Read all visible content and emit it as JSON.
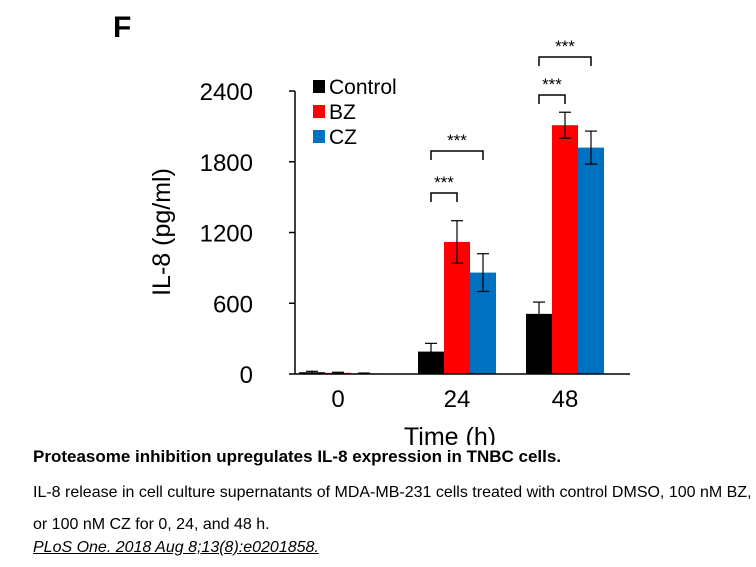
{
  "panel_label": "F",
  "chart_data": {
    "type": "bar",
    "categories": [
      "0",
      "24",
      "48"
    ],
    "series": [
      {
        "name": "Control",
        "color": "#000000",
        "values": [
          15,
          190,
          510
        ],
        "errors": [
          8,
          70,
          100
        ]
      },
      {
        "name": "BZ",
        "color": "#ff0000",
        "values": [
          10,
          1120,
          2110
        ],
        "errors": [
          5,
          180,
          110
        ]
      },
      {
        "name": "CZ",
        "color": "#0070c0",
        "values": [
          5,
          860,
          1920
        ],
        "errors": [
          3,
          160,
          140
        ]
      }
    ],
    "xlabel": "Time (h)",
    "ylabel": "IL-8 (pg/ml)",
    "ylim": [
      0,
      2400
    ],
    "yticks": [
      0,
      600,
      1200,
      1800,
      2400
    ],
    "grid": false,
    "legend_position": "top-left",
    "significance": [
      {
        "group": "24",
        "from": "Control",
        "to": "BZ",
        "label": "***"
      },
      {
        "group": "24",
        "from": "Control",
        "to": "CZ",
        "label": "***"
      },
      {
        "group": "48",
        "from": "Control",
        "to": "BZ",
        "label": "***"
      },
      {
        "group": "48",
        "from": "Control",
        "to": "CZ",
        "label": "***"
      }
    ]
  },
  "caption": {
    "title": "Proteasome inhibition upregulates IL-8 expression in TNBC cells.",
    "description": "IL-8 release in cell culture supernatants of MDA-MB-231 cells treated with control DMSO, 100 nM BZ, or 100 nM CZ for 0, 24, and 48 h.",
    "reference": "PLoS One. 2018 Aug 8;13(8):e0201858."
  }
}
